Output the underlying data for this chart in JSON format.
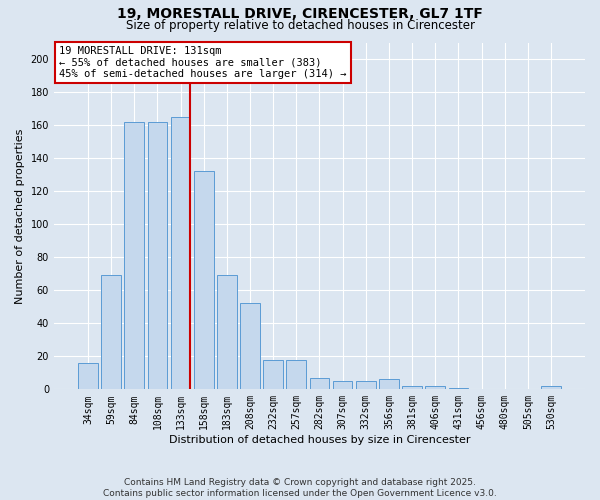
{
  "title_line1": "19, MORESTALL DRIVE, CIRENCESTER, GL7 1TF",
  "title_line2": "Size of property relative to detached houses in Cirencester",
  "xlabel": "Distribution of detached houses by size in Cirencester",
  "ylabel": "Number of detached properties",
  "bar_values": [
    16,
    69,
    162,
    162,
    165,
    132,
    69,
    52,
    18,
    18,
    7,
    5,
    5,
    6,
    2,
    2,
    1,
    0,
    0,
    0,
    2
  ],
  "categories": [
    "34sqm",
    "59sqm",
    "84sqm",
    "108sqm",
    "133sqm",
    "158sqm",
    "183sqm",
    "208sqm",
    "232sqm",
    "257sqm",
    "282sqm",
    "307sqm",
    "332sqm",
    "356sqm",
    "381sqm",
    "406sqm",
    "431sqm",
    "456sqm",
    "480sqm",
    "505sqm",
    "530sqm"
  ],
  "bar_color": "#c5d8ed",
  "bar_edge_color": "#5b9bd5",
  "vline_x_index": 4,
  "vline_color": "#cc0000",
  "annotation_text": "19 MORESTALL DRIVE: 131sqm\n← 55% of detached houses are smaller (383)\n45% of semi-detached houses are larger (314) →",
  "annotation_box_color": "#ffffff",
  "annotation_box_edge_color": "#cc0000",
  "ylim": [
    0,
    210
  ],
  "yticks": [
    0,
    20,
    40,
    60,
    80,
    100,
    120,
    140,
    160,
    180,
    200
  ],
  "background_color": "#dce6f1",
  "plot_bg_color": "#dce6f1",
  "footer_line1": "Contains HM Land Registry data © Crown copyright and database right 2025.",
  "footer_line2": "Contains public sector information licensed under the Open Government Licence v3.0.",
  "title_fontsize": 10,
  "subtitle_fontsize": 8.5,
  "xlabel_fontsize": 8,
  "ylabel_fontsize": 8,
  "tick_fontsize": 7,
  "footer_fontsize": 6.5,
  "annotation_fontsize": 7.5
}
